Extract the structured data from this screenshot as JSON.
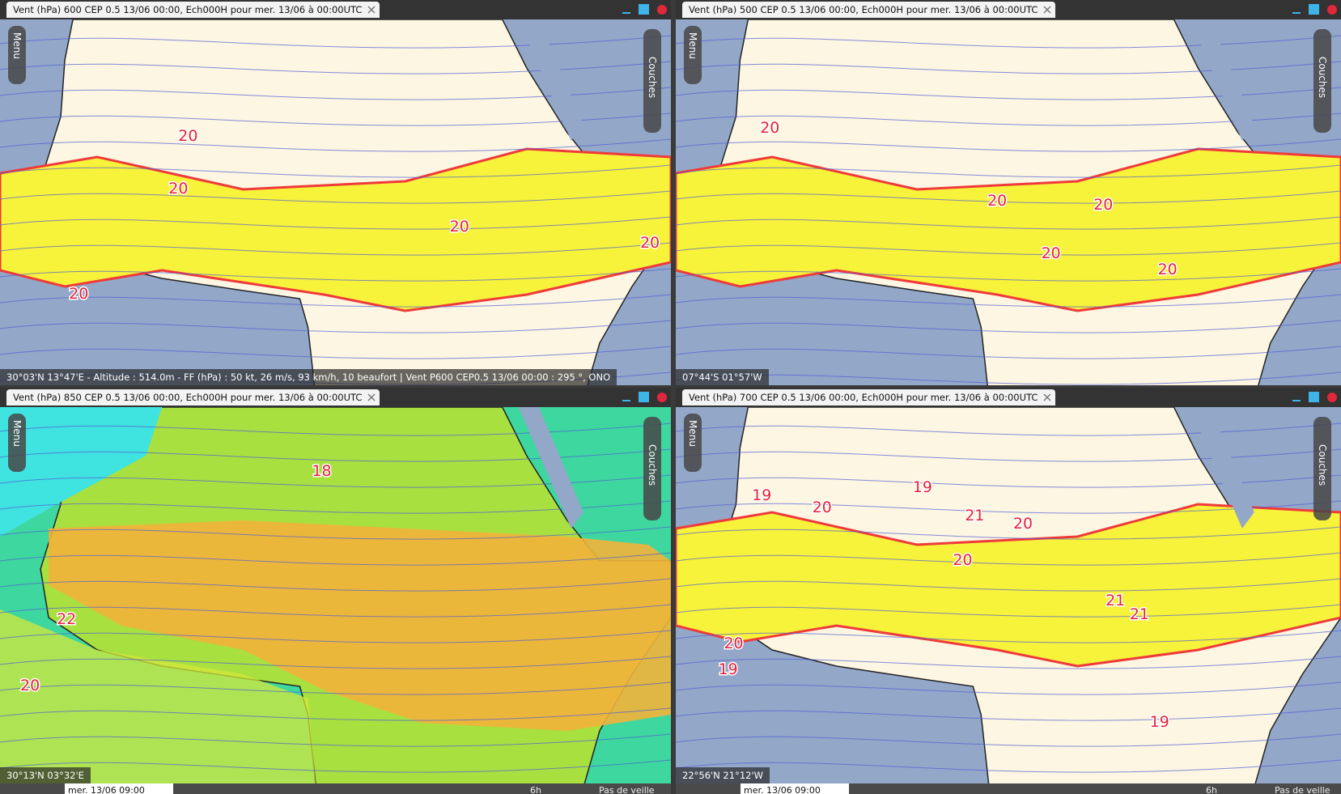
{
  "panels": [
    {
      "tab": "Vent (hPa) 600 CEP 0.5 13/06 00:00, Ech000H pour mer. 13/06 à 00:00UTC",
      "menu": "Menu",
      "layers": "Couches",
      "status": "30°03'N 13°47'E - Altitude : 514.0m - FF (hPa) : 50 kt, 26 m/s, 93 km/h, 10 beaufort | Vent P600 CEP0.5 13/06 00:00 : 295 °, ONO",
      "contour_labels": [
        "20",
        "20",
        "20",
        "20",
        "20"
      ]
    },
    {
      "tab": "Vent (hPa) 500 CEP 0.5 13/06 00:00, Ech000H pour mer. 13/06 à 00:00UTC",
      "menu": "Menu",
      "layers": "Couches",
      "status": "07°44'S 01°57'W",
      "contour_labels": [
        "20",
        "20",
        "20",
        "20",
        "20"
      ]
    },
    {
      "tab": "Vent (hPa) 850 CEP 0.5 13/06 00:00, Ech000H pour mer. 13/06 à 00:00UTC",
      "menu": "Menu",
      "layers": "Couches",
      "status": "30°13'N 03°32'E",
      "contour_labels": [
        "18",
        "22",
        "20"
      ],
      "toolbar": {
        "date": "mer. 13/06 09:00",
        "step": "6h",
        "standby": "Pas de veille"
      }
    },
    {
      "tab": "Vent (hPa) 700 CEP 0.5 13/06 00:00, Ech000H pour mer. 13/06 à 00:00UTC",
      "menu": "Menu",
      "layers": "Couches",
      "status": "22°56'N 21°12'W",
      "contour_labels": [
        "19",
        "19",
        "20",
        "21",
        "20",
        "20",
        "21",
        "21",
        "20",
        "19",
        "19"
      ],
      "toolbar": {
        "date": "mer. 13/06 09:00",
        "step": "6h",
        "standby": "Pas de veille"
      }
    }
  ]
}
